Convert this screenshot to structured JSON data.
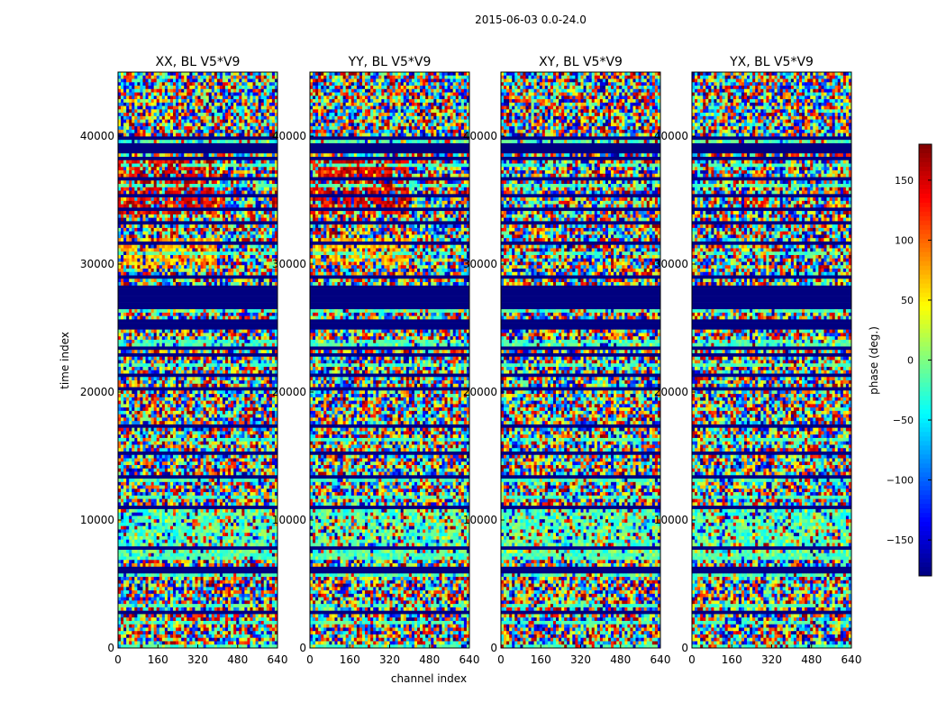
{
  "chart_data": {
    "type": "heatmap",
    "title": "2015-06-03 0.0-24.0",
    "xlabel": "channel index",
    "ylabel": "time index",
    "xlim": [
      0,
      640
    ],
    "ylim": [
      0,
      45000
    ],
    "x_ticks": [
      0,
      160,
      320,
      480,
      640
    ],
    "x_tick_labels": [
      "0",
      "160",
      "320",
      "480",
      "640"
    ],
    "y_ticks": [
      0,
      10000,
      20000,
      30000,
      40000
    ],
    "y_tick_labels": [
      "0",
      "10000",
      "20000",
      "30000",
      "40000"
    ],
    "panels": [
      {
        "title": "XX, BL V5*V9",
        "pol": "XX"
      },
      {
        "title": "YY, BL V5*V9",
        "pol": "YY"
      },
      {
        "title": "XY, BL V5*V9",
        "pol": "XY"
      },
      {
        "title": "YX, BL V5*V9",
        "pol": "YX"
      }
    ],
    "colorbar": {
      "label": "phase (deg.)",
      "range": [
        -180,
        180
      ],
      "colormap": "jet",
      "ticks": [
        -150,
        -100,
        -50,
        0,
        50,
        100,
        150
      ],
      "tick_labels": [
        "−150",
        "−100",
        "−50",
        "0",
        "50",
        "100",
        "150"
      ]
    },
    "flagged_time_ranges": [
      [
        26600,
        28400
      ],
      [
        38700,
        39400
      ]
    ],
    "coherent_regions": [
      {
        "panels": [
          "XX",
          "YY"
        ],
        "time_range": [
          34000,
          38500
        ],
        "channel_range": [
          0,
          400
        ],
        "phase_center": 145
      },
      {
        "panels": [
          "XX",
          "YY"
        ],
        "time_range": [
          30000,
          32000
        ],
        "channel_range": [
          0,
          400
        ],
        "phase_center": 70
      },
      {
        "panels": [
          "XX",
          "YY"
        ],
        "time_range": [
          26300,
          26600
        ],
        "channel_range": [
          0,
          400
        ],
        "phase_center": 50
      },
      {
        "panels": [
          "XX",
          "YY",
          "XY",
          "YX"
        ],
        "time_range": [
          6800,
          10800
        ],
        "channel_range": [
          0,
          640
        ],
        "phase_center": -15
      }
    ]
  }
}
